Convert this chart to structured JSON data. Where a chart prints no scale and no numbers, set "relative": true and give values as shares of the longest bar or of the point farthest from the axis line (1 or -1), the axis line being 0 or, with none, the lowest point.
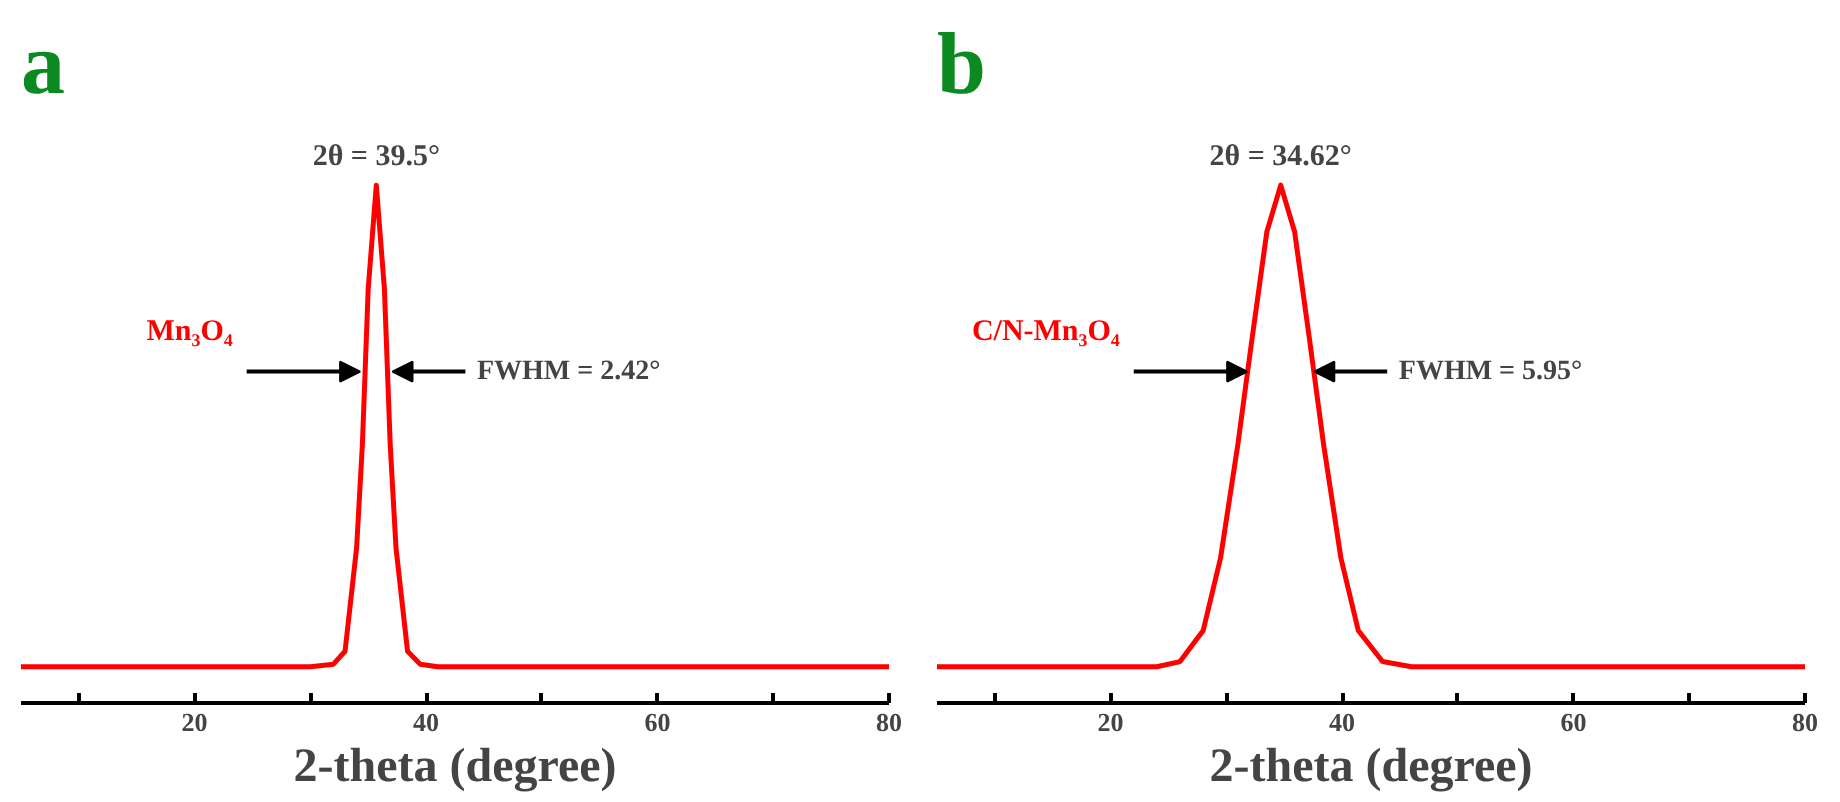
{
  "chart_data": [
    {
      "type": "line",
      "title": "a",
      "xlabel": "2-theta (degree)",
      "relative": true,
      "xlim": [
        5,
        80
      ],
      "xticks": [
        {
          "value": 10,
          "label": null
        },
        20,
        {
          "value": 30,
          "label": null
        },
        40,
        {
          "value": 50,
          "label": null
        },
        60,
        {
          "value": 70,
          "label": null
        },
        80
      ],
      "grid": false,
      "legend": false,
      "marker": "none",
      "line_style": "solid",
      "tick_labels": "x",
      "series": [
        {
          "name": "Mn₃O₄",
          "color": "#ff0000",
          "x": [
            5,
            30,
            32,
            33,
            34,
            34.5,
            35,
            35.7,
            36.4,
            36.9,
            37.4,
            38.4,
            39.5,
            41,
            80
          ],
          "values": [
            0.07,
            0.07,
            0.075,
            0.1,
            0.3,
            0.5,
            0.8,
            1,
            0.8,
            0.5,
            0.3,
            0.1,
            0.075,
            0.07,
            0.07
          ]
        }
      ],
      "annotations": [
        {
          "text": "2θ = 39.5°",
          "x": 35.7,
          "y": 1
        },
        {
          "text": "FWHM = 2.42°",
          "x": 37.1,
          "y": 0.64
        }
      ]
    },
    {
      "type": "line",
      "title": "b",
      "xlabel": "2-theta (degree)",
      "relative": true,
      "xlim": [
        5,
        80
      ],
      "xticks": [
        {
          "value": 10,
          "label": null
        },
        20,
        {
          "value": 30,
          "label": null
        },
        40,
        {
          "value": 50,
          "label": null
        },
        60,
        {
          "value": 70,
          "label": null
        },
        80
      ],
      "grid": false,
      "legend": false,
      "marker": "none",
      "line_style": "solid",
      "tick_labels": "x",
      "series": [
        {
          "name": "C/N-Mn₃O₄",
          "color": "#ff0000",
          "x": [
            5,
            24,
            26,
            28,
            29.5,
            31,
            32.2,
            33.5,
            34.7,
            35.9,
            37.2,
            38.4,
            39.9,
            41.4,
            43.5,
            46,
            80
          ],
          "values": [
            0.07,
            0.07,
            0.08,
            0.14,
            0.28,
            0.5,
            0.7,
            0.91,
            1,
            0.91,
            0.7,
            0.5,
            0.28,
            0.14,
            0.08,
            0.07,
            0.07
          ]
        }
      ],
      "annotations": [
        {
          "text": "2θ = 34.62°",
          "x": 34.7,
          "y": 1
        },
        {
          "text": "FWHM = 5.95°",
          "x": 37.6,
          "y": 0.64
        }
      ]
    }
  ]
}
